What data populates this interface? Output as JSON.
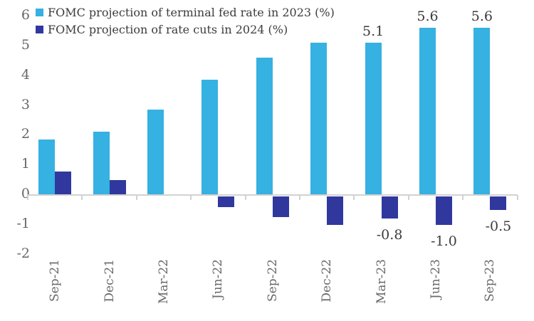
{
  "chart_data": {
    "type": "bar",
    "title": "",
    "categories": [
      "Sep-21",
      "Dec-21",
      "Mar-22",
      "Jun-22",
      "Sep-22",
      "Dec-22",
      "Mar-23",
      "Jun-23",
      "Sep-23"
    ],
    "series": [
      {
        "name": "FOMC projection of terminal fed rate in 2023 (%)",
        "color": "#35b1e2",
        "values": [
          1.875,
          2.125,
          2.875,
          3.875,
          4.625,
          5.125,
          5.125,
          5.625,
          5.625
        ],
        "value_labels": [
          "",
          "",
          "",
          "",
          "",
          "",
          "5.1",
          "5.6",
          "5.6"
        ]
      },
      {
        "name": "FOMC projection of rate cuts in 2024 (%)",
        "color": "#30389e",
        "values": [
          0.8,
          0.5,
          0,
          -0.4,
          -0.75,
          -1.0,
          -0.8,
          -1.0,
          -0.5
        ],
        "value_labels": [
          "",
          "",
          "",
          "",
          "",
          "",
          "-0.8",
          "-1.0",
          "-0.5"
        ]
      }
    ],
    "y_ticks": [
      6,
      5,
      4,
      3,
      2,
      1,
      0,
      -1,
      -2
    ],
    "ylim": [
      -2,
      6
    ],
    "legend_position": "top-left",
    "grid": false,
    "axis_line_color": "#d2d2d2",
    "tick_label_color": "#686868",
    "data_label_color": "#3c3c3c",
    "background": "#ffffff"
  }
}
